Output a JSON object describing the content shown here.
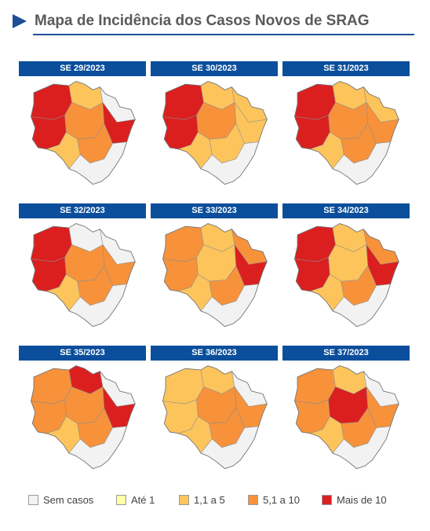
{
  "title": "Mapa de Incidência dos Casos Novos de SRAG",
  "colors": {
    "header_blue": "#0b4f9c",
    "sem_casos": "#f2f2f2",
    "ate_1": "#ffffa8",
    "c1_5": "#fdc45c",
    "c5_10": "#f7923b",
    "mais10": "#db1f1f"
  },
  "maps": [
    {
      "label": "SE 29/2023",
      "fill": {
        "northwest": "mais10",
        "north": "c1_5",
        "northeast": "sem_casos",
        "west": "mais10",
        "center": "c5_10",
        "east": "mais10",
        "southwest": "c1_5",
        "south": "c5_10",
        "southeast": "sem_casos"
      }
    },
    {
      "label": "SE 30/2023",
      "fill": {
        "northwest": "mais10",
        "north": "c1_5",
        "northeast": "c1_5",
        "west": "mais10",
        "center": "c5_10",
        "east": "c1_5",
        "southwest": "c1_5",
        "south": "c1_5",
        "southeast": "sem_casos"
      }
    },
    {
      "label": "SE 31/2023",
      "fill": {
        "northwest": "mais10",
        "north": "c1_5",
        "northeast": "c1_5",
        "west": "mais10",
        "center": "c5_10",
        "east": "c5_10",
        "southwest": "c1_5",
        "south": "c5_10",
        "southeast": "sem_casos"
      }
    },
    {
      "label": "SE 32/2023",
      "fill": {
        "northwest": "mais10",
        "north": "sem_casos",
        "northeast": "sem_casos",
        "west": "mais10",
        "center": "c5_10",
        "east": "c5_10",
        "southwest": "c1_5",
        "south": "c5_10",
        "southeast": "sem_casos"
      }
    },
    {
      "label": "SE 33/2023",
      "fill": {
        "northwest": "c5_10",
        "north": "c1_5",
        "northeast": "c5_10",
        "west": "c5_10",
        "center": "c1_5",
        "east": "mais10",
        "southwest": "c1_5",
        "south": "c5_10",
        "southeast": "sem_casos"
      }
    },
    {
      "label": "SE 34/2023",
      "fill": {
        "northwest": "mais10",
        "north": "c1_5",
        "northeast": "c5_10",
        "west": "mais10",
        "center": "c1_5",
        "east": "mais10",
        "southwest": "c1_5",
        "south": "c5_10",
        "southeast": "sem_casos"
      }
    },
    {
      "label": "SE 35/2023",
      "fill": {
        "northwest": "c5_10",
        "north": "mais10",
        "northeast": "sem_casos",
        "west": "c5_10",
        "center": "c5_10",
        "east": "mais10",
        "southwest": "c1_5",
        "south": "c5_10",
        "southeast": "sem_casos"
      }
    },
    {
      "label": "SE 36/2023",
      "fill": {
        "northwest": "c1_5",
        "north": "c1_5",
        "northeast": "sem_casos",
        "west": "c1_5",
        "center": "c5_10",
        "east": "c5_10",
        "southwest": "c1_5",
        "south": "c5_10",
        "southeast": "sem_casos"
      }
    },
    {
      "label": "SE 37/2023",
      "fill": {
        "northwest": "c5_10",
        "north": "c1_5",
        "northeast": "sem_casos",
        "west": "c5_10",
        "center": "mais10",
        "east": "c5_10",
        "southwest": "c1_5",
        "south": "c5_10",
        "southeast": "sem_casos"
      }
    }
  ],
  "legend": [
    {
      "label": "Sem casos",
      "color": "#f2f2f2"
    },
    {
      "label": "Até 1",
      "color": "#ffffa8"
    },
    {
      "label": "1,1 a 5",
      "color": "#fdc45c"
    },
    {
      "label": "5,1 a 10",
      "color": "#f7923b"
    },
    {
      "label": "Mais de 10",
      "color": "#db1f1f"
    }
  ]
}
